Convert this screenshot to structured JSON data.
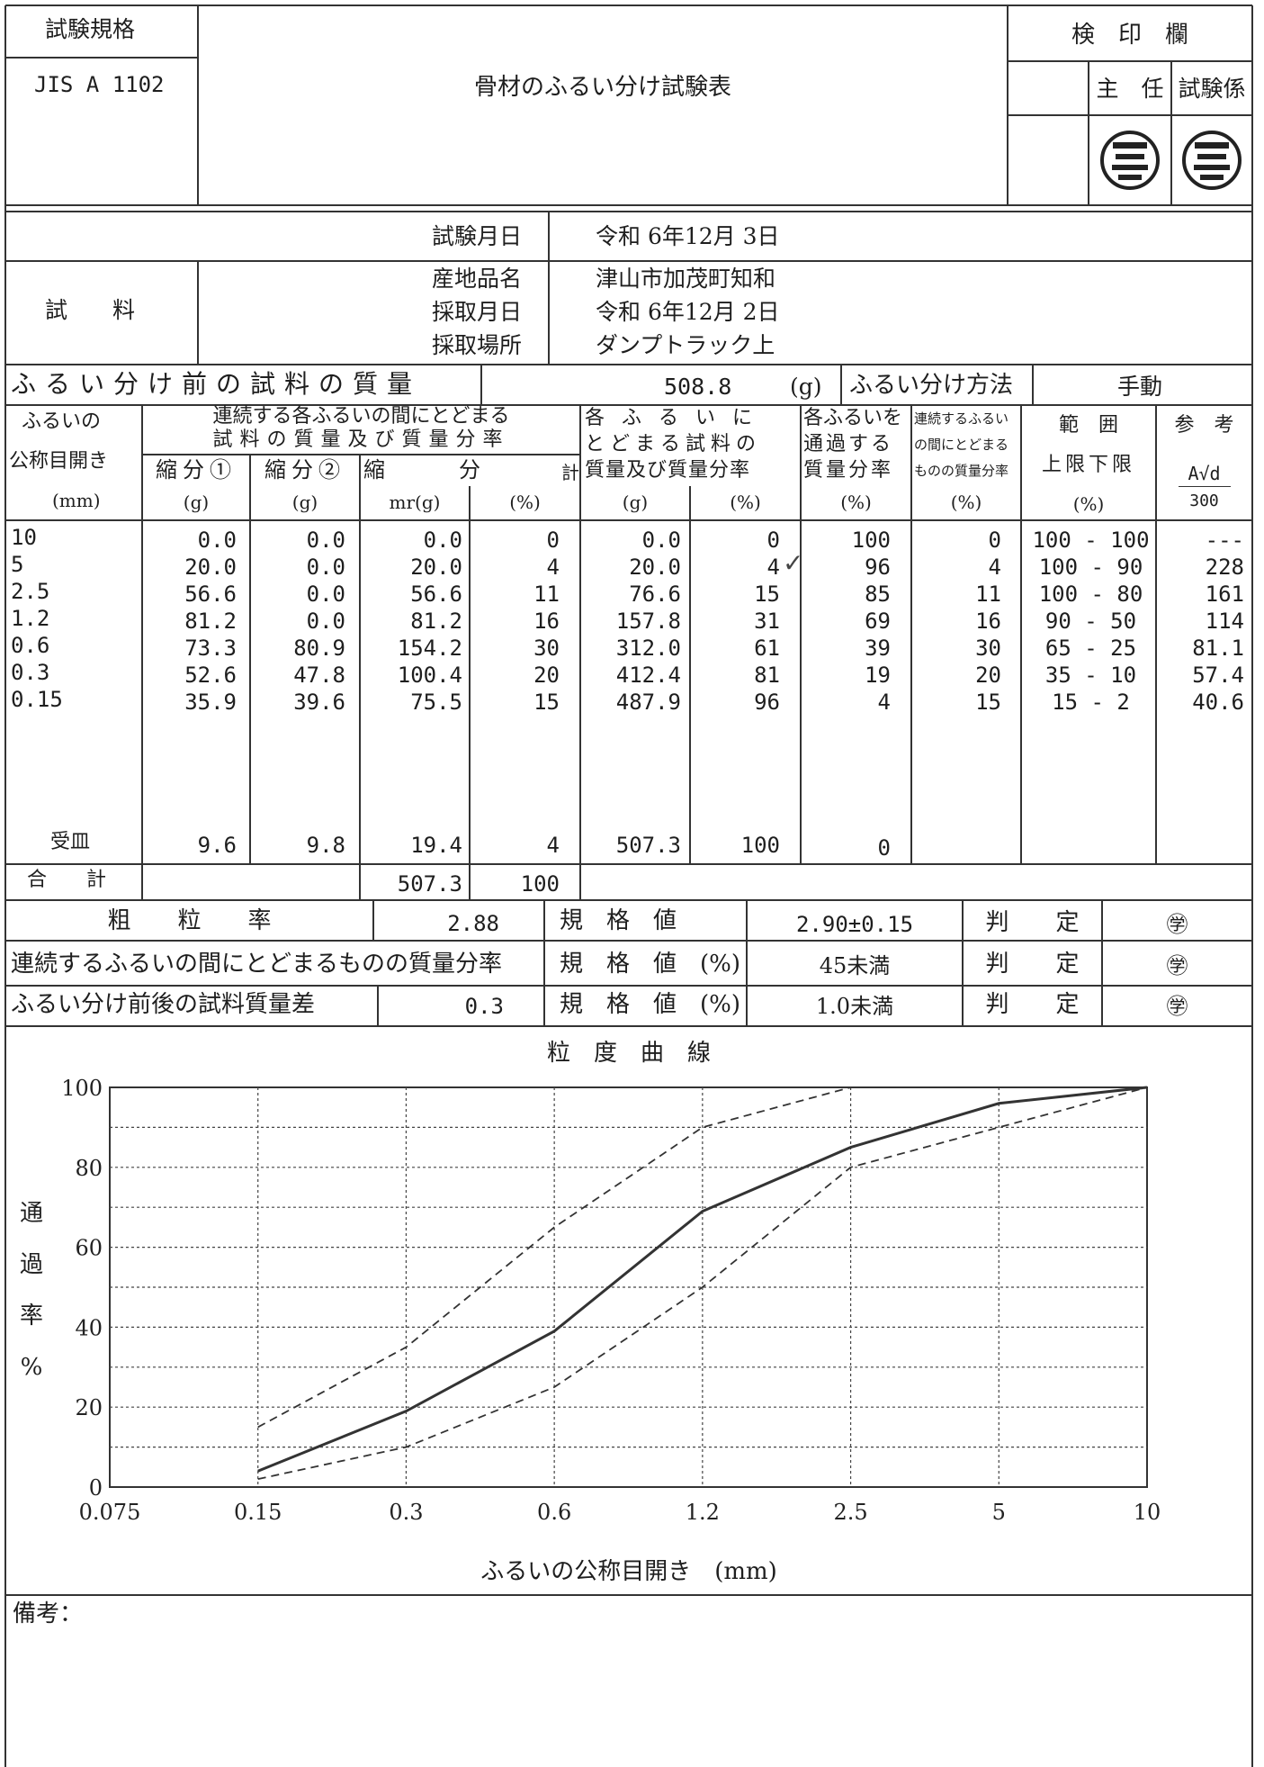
{
  "header": {
    "standard_label": "試験規格",
    "standard_value": "JIS A 1102",
    "title": "骨材のふるい分け試験表",
    "stamp_label": "検　印　欄",
    "chief_label": "主　任",
    "tester_label": "試験係"
  },
  "test_date": {
    "label": "試験月日",
    "value": "令和 6年12月 3日"
  },
  "sample": {
    "label": "試　　料",
    "origin_label": "産地品名",
    "origin_value": "津山市加茂町知和",
    "collect_date_label": "採取月日",
    "collect_date_value": "令和 6年12月 2日",
    "collect_place_label": "採取場所",
    "collect_place_value": "ダンプトラック上"
  },
  "pre_mass": {
    "label": "ふるい分け前の試料の質量",
    "value": "508.8",
    "unit": "(g)",
    "method_label": "ふるい分け方法",
    "method_value": "手動"
  },
  "columns": {
    "sieve_1": "ふるいの",
    "sieve_2": "公称目開き",
    "sieve_unit": "(mm)",
    "cont_head_1": "連続する各ふるいの間にとどまる",
    "cont_head_2": "試料の質量及び質量分率",
    "red1": "縮分①",
    "red2": "縮分②",
    "total_1": "縮",
    "total_2": "分",
    "total_3": "計",
    "g": "(g)",
    "mrg": "mr(g)",
    "pct": "(%)",
    "cum_1": "各ふるいに",
    "cum_2": "とどまる試料の",
    "cum_3": "質量及び質量分率",
    "pass_1": "各ふるいを",
    "pass_2": "通過する",
    "pass_3": "質量分率",
    "seg_1": "連続するふるい",
    "seg_2": "の間にとどまる",
    "seg_3": "ものの質量分率",
    "range_1": "範　囲",
    "range_2": "上限下限",
    "ref_1": "参　考",
    "ref_2": "A√d",
    "ref_3": "300",
    "check_mark": "✓"
  },
  "rows": [
    {
      "sieve": "10",
      "r1": "0.0",
      "r2": "0.0",
      "mr": "0.0",
      "pct": "0",
      "cum": "0.0",
      "cum_pct": "0",
      "pass": "100",
      "seg": "0",
      "range": "100 - 100",
      "ref": "---"
    },
    {
      "sieve": "5",
      "r1": "20.0",
      "r2": "0.0",
      "mr": "20.0",
      "pct": "4",
      "cum": "20.0",
      "cum_pct": "4",
      "pass": "96",
      "seg": "4",
      "range": "100 - 90",
      "ref": "228"
    },
    {
      "sieve": "2.5",
      "r1": "56.6",
      "r2": "0.0",
      "mr": "56.6",
      "pct": "11",
      "cum": "76.6",
      "cum_pct": "15",
      "pass": "85",
      "seg": "11",
      "range": "100 - 80",
      "ref": "161"
    },
    {
      "sieve": "1.2",
      "r1": "81.2",
      "r2": "0.0",
      "mr": "81.2",
      "pct": "16",
      "cum": "157.8",
      "cum_pct": "31",
      "pass": "69",
      "seg": "16",
      "range": "90 - 50",
      "ref": "114"
    },
    {
      "sieve": "0.6",
      "r1": "73.3",
      "r2": "80.9",
      "mr": "154.2",
      "pct": "30",
      "cum": "312.0",
      "cum_pct": "61",
      "pass": "39",
      "seg": "30",
      "range": "65 - 25",
      "ref": "81.1"
    },
    {
      "sieve": "0.3",
      "r1": "52.6",
      "r2": "47.8",
      "mr": "100.4",
      "pct": "20",
      "cum": "412.4",
      "cum_pct": "81",
      "pass": "19",
      "seg": "20",
      "range": "35 - 10",
      "ref": "57.4"
    },
    {
      "sieve": "0.15",
      "r1": "35.9",
      "r2": "39.6",
      "mr": "75.5",
      "pct": "15",
      "cum": "487.9",
      "cum_pct": "96",
      "pass": "4",
      "seg": "15",
      "range": "15 - 2",
      "ref": "40.6"
    }
  ],
  "pan_row": {
    "label": "受皿",
    "r1": "9.6",
    "r2": "9.8",
    "mr": "19.4",
    "pct": "4",
    "cum": "507.3",
    "cum_pct": "100",
    "pass": "0"
  },
  "total_row": {
    "label": "合　　計",
    "mr": "507.3",
    "pct": "100"
  },
  "results": [
    {
      "label": "粗　　粒　　率",
      "value": "2.88",
      "spec_label": "規　格　値",
      "spec": "2.90±0.15",
      "judge_label": "判　　定",
      "judge": "㊫"
    },
    {
      "label": "連続するふるいの間にとどまるものの質量分率",
      "value": "",
      "spec_label": "規　格　値　(%)",
      "spec": "45未満",
      "judge_label": "判　　定",
      "judge": "㊫"
    },
    {
      "label": "ふるい分け前後の試料質量差",
      "value": "0.3",
      "spec_label": "規　格　値　(%)",
      "spec": "1.0未満",
      "judge_label": "判　　定",
      "judge": "㊫"
    }
  ],
  "remarks_label": "備考：",
  "chart_data": {
    "type": "line",
    "title": "粒　度　曲　線",
    "xlabel": "ふるいの公称目開き　(mm)",
    "ylabel": "通過率%",
    "x_categories": [
      "0.075",
      "0.15",
      "0.3",
      "0.6",
      "1.2",
      "2.5",
      "5",
      "10"
    ],
    "ylim": [
      0,
      100
    ],
    "yticks": [
      0,
      20,
      40,
      60,
      80,
      100
    ],
    "grid": true,
    "series": [
      {
        "style": "solid",
        "x": [
          "0.15",
          "0.3",
          "0.6",
          "1.2",
          "2.5",
          "5",
          "10"
        ],
        "values": [
          4,
          19,
          39,
          69,
          85,
          96,
          100
        ]
      },
      {
        "style": "dashed",
        "x": [
          "0.15",
          "0.3",
          "0.6",
          "1.2",
          "2.5",
          "5",
          "10"
        ],
        "values": [
          15,
          35,
          65,
          90,
          100,
          100,
          100
        ]
      },
      {
        "style": "dashed",
        "x": [
          "0.15",
          "0.3",
          "0.6",
          "1.2",
          "2.5",
          "5",
          "10"
        ],
        "values": [
          2,
          10,
          25,
          50,
          80,
          90,
          100
        ]
      }
    ]
  }
}
